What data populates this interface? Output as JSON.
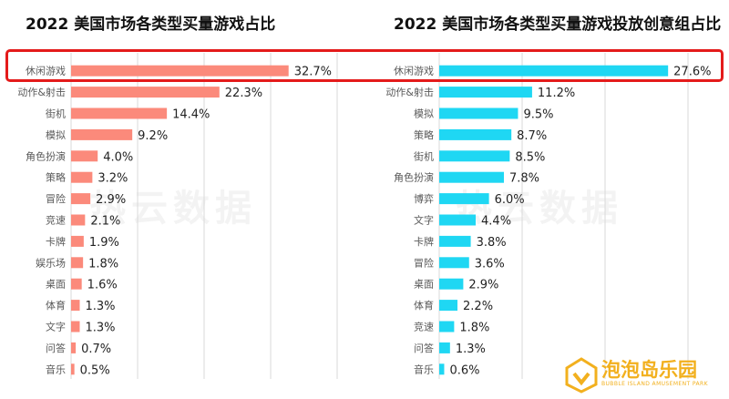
{
  "chart_data": [
    {
      "type": "bar",
      "orientation": "horizontal",
      "title": "2022 美国市场各类型买量游戏占比",
      "categories": [
        "休闲游戏",
        "动作&射击",
        "街机",
        "模拟",
        "角色扮演",
        "策略",
        "冒险",
        "竞速",
        "卡牌",
        "娱乐场",
        "桌面",
        "体育",
        "文字",
        "问答",
        "音乐"
      ],
      "values": [
        32.7,
        22.3,
        14.4,
        9.2,
        4.0,
        3.2,
        2.9,
        2.1,
        1.9,
        1.8,
        1.6,
        1.3,
        1.3,
        0.7,
        0.5
      ],
      "labels": [
        "32.7%",
        "22.3%",
        "14.4%",
        "9.2%",
        "4.0%",
        "3.2%",
        "2.9%",
        "2.1%",
        "1.9%",
        "1.8%",
        "1.6%",
        "1.3%",
        "1.3%",
        "0.7%",
        "0.5%"
      ],
      "color": "#fb8a7b",
      "xlim": [
        0,
        40
      ],
      "grid": true
    },
    {
      "type": "bar",
      "orientation": "horizontal",
      "title": "2022 美国市场各类型买量游戏投放创意组占比",
      "categories": [
        "休闲游戏",
        "动作&射击",
        "模拟",
        "策略",
        "街机",
        "角色扮演",
        "博弈",
        "文字",
        "卡牌",
        "冒险",
        "桌面",
        "体育",
        "竞速",
        "问答",
        "音乐"
      ],
      "values": [
        27.6,
        11.2,
        9.5,
        8.7,
        8.5,
        7.8,
        6.0,
        4.4,
        3.8,
        3.6,
        2.9,
        2.2,
        1.8,
        1.3,
        0.6
      ],
      "labels": [
        "27.6%",
        "11.2%",
        "9.5%",
        "8.7%",
        "8.5%",
        "7.8%",
        "6.0%",
        "4.4%",
        "3.8%",
        "3.6%",
        "2.9%",
        "2.2%",
        "1.8%",
        "1.3%",
        "0.6%"
      ],
      "color": "#1fd7f3",
      "xlim": [
        0,
        30
      ],
      "grid": true
    }
  ],
  "watermark": "热云数据",
  "logo": {
    "text": "泡泡岛乐园",
    "subtext": "BUBBLE ISLAND AMUSEMENT PARK",
    "color": "#f2b01e",
    "icon": "bubble-island-logo-icon"
  },
  "highlight_color": "#e41b1b"
}
